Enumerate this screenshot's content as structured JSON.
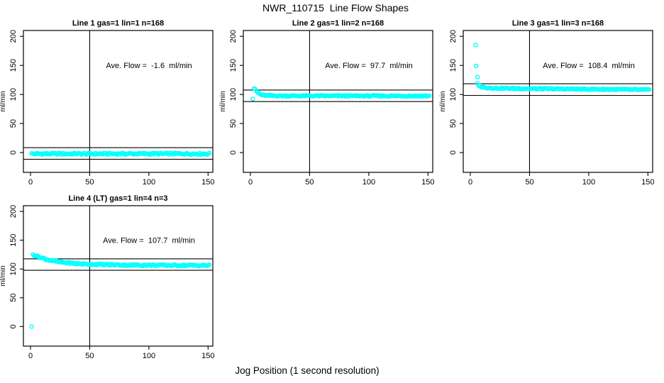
{
  "figure": {
    "title": "NWR_110715  Line Flow Shapes",
    "xlabel": "Jog Position (1 second resolution)",
    "background_color": "#ffffff",
    "point_color": "#00ffff",
    "axis_color": "#000000"
  },
  "chart_data": [
    {
      "type": "scatter",
      "title": "Line 1 gas=1 lin=1 n=168",
      "annotation": "Ave. Flow =  -1.6  ml/min",
      "ave_flow_ml_min": -1.6,
      "ylabel": "ml/min",
      "xlim": [
        -6,
        154
      ],
      "ylim": [
        -34,
        210
      ],
      "xticks": [
        0,
        50,
        100,
        150
      ],
      "yticks": [
        0,
        50,
        100,
        150,
        200
      ],
      "vline_x": 50,
      "hlines": [
        8.4,
        -11.6
      ],
      "band": {
        "x_start": 1,
        "x_end": 151,
        "step": 1,
        "jitter": 1.5,
        "curve": [
          [
            1,
            -2
          ],
          [
            151,
            -2
          ]
        ]
      },
      "outliers": []
    },
    {
      "type": "scatter",
      "title": "Line 2 gas=1 lin=2 n=168",
      "annotation": "Ave. Flow =  97.7  ml/min",
      "ave_flow_ml_min": 97.7,
      "ylabel": "ml/min",
      "xlim": [
        -6,
        154
      ],
      "ylim": [
        -34,
        210
      ],
      "xticks": [
        0,
        50,
        100,
        150
      ],
      "yticks": [
        0,
        50,
        100,
        150,
        200
      ],
      "vline_x": 50,
      "hlines": [
        107.7,
        87.7
      ],
      "band": {
        "x_start": 3,
        "x_end": 151,
        "step": 1,
        "jitter": 1.1,
        "curve": [
          [
            3,
            110.5
          ],
          [
            4,
            108.5
          ],
          [
            5,
            106
          ],
          [
            6,
            103.5
          ],
          [
            8,
            100.5
          ],
          [
            10,
            99
          ],
          [
            14,
            98
          ],
          [
            25,
            97.6
          ],
          [
            151,
            97.4
          ]
        ]
      },
      "outliers": [
        [
          2,
          92.5
        ]
      ]
    },
    {
      "type": "scatter",
      "title": "Line 3 gas=1 lin=3 n=168",
      "annotation": "Ave. Flow =  108.4  ml/min",
      "ave_flow_ml_min": 108.4,
      "ylabel": "ml/min",
      "xlim": [
        -6,
        154
      ],
      "ylim": [
        -34,
        210
      ],
      "xticks": [
        0,
        50,
        100,
        150
      ],
      "yticks": [
        0,
        50,
        100,
        150,
        200
      ],
      "vline_x": 50,
      "hlines": [
        118.4,
        98.4
      ],
      "band": {
        "x_start": 6,
        "x_end": 151,
        "step": 1,
        "jitter": 1.0,
        "curve": [
          [
            6,
            119
          ],
          [
            7,
            116
          ],
          [
            9,
            113.5
          ],
          [
            12,
            112
          ],
          [
            16,
            111.2
          ],
          [
            25,
            110.6
          ],
          [
            50,
            110
          ],
          [
            90,
            109.3
          ],
          [
            130,
            108.5
          ],
          [
            151,
            108
          ]
        ]
      },
      "outliers": [
        [
          4.5,
          185
        ],
        [
          5,
          149
        ],
        [
          6,
          130
        ]
      ]
    },
    {
      "type": "scatter",
      "title": "Line 4 (LT) gas=1 lin=4 n=3",
      "annotation": "Ave. Flow =  107.7  ml/min",
      "ave_flow_ml_min": 107.7,
      "ylabel": "ml/min",
      "xlim": [
        -6,
        154
      ],
      "ylim": [
        -34,
        210
      ],
      "xticks": [
        0,
        50,
        100,
        150
      ],
      "yticks": [
        0,
        50,
        100,
        150,
        200
      ],
      "vline_x": 50,
      "hlines": [
        117.7,
        97.7
      ],
      "band": {
        "x_start": 2,
        "x_end": 151,
        "step": 1,
        "jitter": 1.4,
        "curve": [
          [
            2,
            125
          ],
          [
            4,
            123.5
          ],
          [
            7,
            121
          ],
          [
            10,
            119
          ],
          [
            13,
            117
          ],
          [
            17,
            115
          ],
          [
            21,
            113.5
          ],
          [
            26,
            111.8
          ],
          [
            31,
            110.7
          ],
          [
            38,
            109.5
          ],
          [
            46,
            108.6
          ],
          [
            60,
            107.8
          ],
          [
            80,
            107
          ],
          [
            110,
            106.5
          ],
          [
            151,
            106.2
          ]
        ]
      },
      "outliers": [
        [
          1,
          0
        ]
      ]
    }
  ]
}
